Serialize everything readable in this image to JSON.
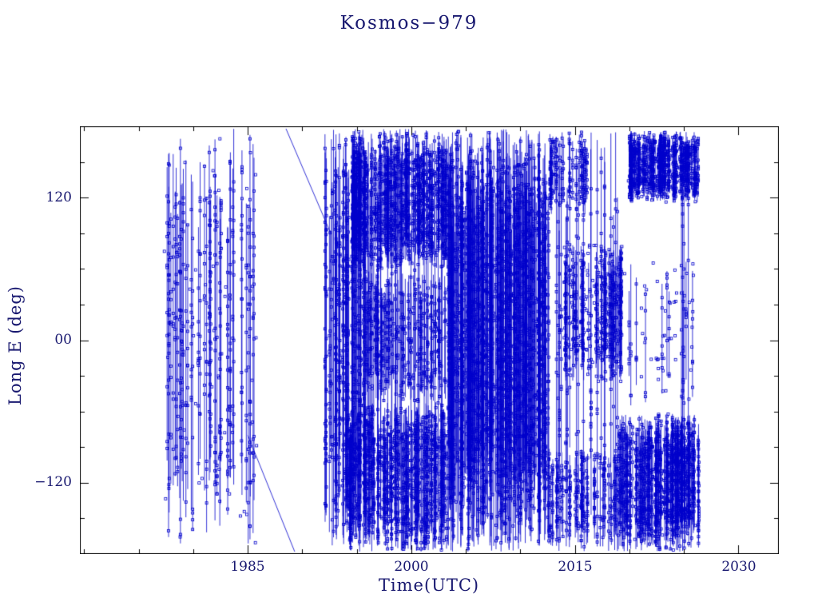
{
  "colors": {
    "background": "#ffffff",
    "data": "#0000cc",
    "axis": "#000000",
    "text": "#191970"
  },
  "chart_data": {
    "type": "scatter",
    "title": "Kosmos−979",
    "xlabel": "Time(UTC)",
    "ylabel": "Long E (deg)",
    "xlim": [
      1969.6,
      2033.7
    ],
    "ylim": [
      -180,
      180
    ],
    "grid": false,
    "legend": null,
    "marker": "open-square",
    "x_minor_step": 5,
    "y_minor_step": 30,
    "x_ticks": [
      {
        "value": 1985,
        "label": "1985"
      },
      {
        "value": 2000,
        "label": "2000"
      },
      {
        "value": 2015,
        "label": "2015"
      },
      {
        "value": 2030,
        "label": "2030"
      }
    ],
    "y_ticks": [
      {
        "value": 120,
        "label": "120"
      },
      {
        "value": 0,
        "label": "00"
      },
      {
        "value": -120,
        "label": "−120"
      }
    ],
    "seed": 42,
    "description": "Geodetic longitude history of Kosmos-979: dense vertical tracks of small open squares connected by thin lines, wrapping between -180 and +180 deg.",
    "segments": [
      {
        "from": [
          1985.0,
          -80
        ],
        "to": [
          1989.3,
          -178
        ]
      },
      {
        "from": [
          1988.5,
          178
        ],
        "to": [
          1992.6,
          90
        ]
      }
    ],
    "clusters": [
      {
        "name": "early-era-full-range",
        "t0": 1977.3,
        "t1": 1985.9,
        "lon0": -178,
        "lon1": 178,
        "lines": 46,
        "markers_per_line": 10,
        "extra_markers": 60
      },
      {
        "name": "1992-reacquire-full-range",
        "t0": 1992.0,
        "t1": 1995.8,
        "lon0": -178,
        "lon1": 178,
        "lines": 55,
        "markers_per_line": 10,
        "extra_markers": 0
      },
      {
        "name": "nineties-full-sparse",
        "t0": 1993.9,
        "t1": 2003.3,
        "lon0": -178,
        "lon1": 178,
        "lines": 45,
        "markers_per_line": 8,
        "extra_markers": 0
      },
      {
        "name": "nineties-top-band",
        "t0": 1994.5,
        "t1": 2003.3,
        "lon0": 58,
        "lon1": 178,
        "lines": 150,
        "markers_per_line": 9,
        "extra_markers": 0
      },
      {
        "name": "nineties-bottom-band",
        "t0": 1993.9,
        "t1": 2003.3,
        "lon0": -178,
        "lon1": -52,
        "lines": 130,
        "markers_per_line": 9,
        "extra_markers": 0
      },
      {
        "name": "nineties-mid-band",
        "t0": 1995.8,
        "t1": 2003.3,
        "lon0": -52,
        "lon1": 58,
        "lines": 70,
        "markers_per_line": 5,
        "extra_markers": 0
      },
      {
        "name": "solid-block-2003-2012",
        "t0": 2003.3,
        "t1": 2012.6,
        "lon0": -178,
        "lon1": 178,
        "lines": 280,
        "markers_per_line": 10,
        "extra_markers": 0
      },
      {
        "name": "2013-2019-full-sparse",
        "t0": 2012.6,
        "t1": 2019.0,
        "lon0": -178,
        "lon1": 178,
        "lines": 22,
        "markers_per_line": 8,
        "extra_markers": 0
      },
      {
        "name": "2013-2016-top",
        "t0": 2012.6,
        "t1": 2016.2,
        "lon0": 105,
        "lon1": 178,
        "lines": 26,
        "markers_per_line": 7,
        "extra_markers": 0
      },
      {
        "name": "2014-2019-mid-libration",
        "t0": 2014.0,
        "t1": 2019.3,
        "lon0": -35,
        "lon1": 80,
        "lines": 55,
        "markers_per_line": 6,
        "extra_markers": 120
      },
      {
        "name": "2013-2019-bottom",
        "t0": 2012.6,
        "t1": 2019.0,
        "lon0": -178,
        "lon1": -90,
        "lines": 45,
        "markers_per_line": 7,
        "extra_markers": 0
      },
      {
        "name": "top-right-block",
        "t0": 2019.9,
        "t1": 2026.4,
        "lon0": 116,
        "lon1": 176,
        "lines": 120,
        "markers_per_line": 8,
        "extra_markers": 40
      },
      {
        "name": "bottom-right-block",
        "t0": 2018.9,
        "t1": 2026.4,
        "lon0": -178,
        "lon1": -62,
        "lines": 150,
        "markers_per_line": 8,
        "extra_markers": 40
      },
      {
        "name": "mid-right-sparse",
        "t0": 2019.5,
        "t1": 2026.0,
        "lon0": -55,
        "lon1": 70,
        "lines": 10,
        "markers_per_line": 5,
        "extra_markers": 45
      },
      {
        "name": "late-full-lines",
        "t0": 2024.3,
        "t1": 2025.7,
        "lon0": -178,
        "lon1": 178,
        "lines": 4,
        "markers_per_line": 6,
        "extra_markers": 0
      }
    ]
  }
}
